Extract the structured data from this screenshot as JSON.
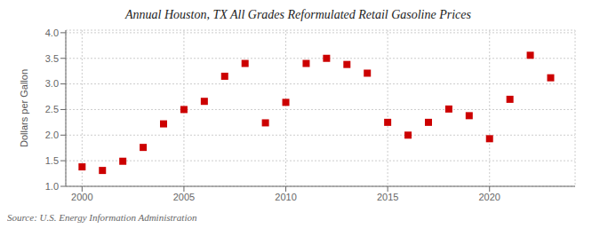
{
  "chart_data": {
    "type": "scatter",
    "title": "Annual Houston, TX All Grades Reformulated Retail Gasoline Prices",
    "ylabel": "Dollars per Gallon",
    "annotations": [
      "Source: U.S. Energy Information Administration"
    ],
    "x": [
      2000,
      2001,
      2002,
      2003,
      2004,
      2005,
      2006,
      2007,
      2008,
      2009,
      2010,
      2011,
      2012,
      2013,
      2014,
      2015,
      2016,
      2017,
      2018,
      2019,
      2020,
      2021,
      2022,
      2023
    ],
    "values": [
      1.38,
      1.31,
      1.49,
      1.76,
      2.22,
      2.5,
      2.66,
      3.15,
      3.4,
      2.24,
      2.64,
      3.4,
      3.5,
      3.38,
      3.21,
      2.25,
      2.0,
      2.25,
      2.51,
      2.38,
      1.93,
      2.7,
      3.56,
      3.12
    ],
    "color": "#cc0000",
    "marker": "square",
    "xlim": [
      1999.2,
      2024.2
    ],
    "xticks": [
      2000,
      2005,
      2010,
      2015,
      2020
    ],
    "ylim": [
      1.0,
      4.05
    ],
    "yticks": [
      {
        "value": 1.0,
        "label": "1.0"
      },
      1.5,
      {
        "value": 2.0,
        "label": "2.0"
      },
      2.5,
      {
        "value": 3.0,
        "label": "3.0"
      },
      3.5,
      {
        "value": 4.0,
        "label": "4.0"
      }
    ],
    "grid": true
  }
}
